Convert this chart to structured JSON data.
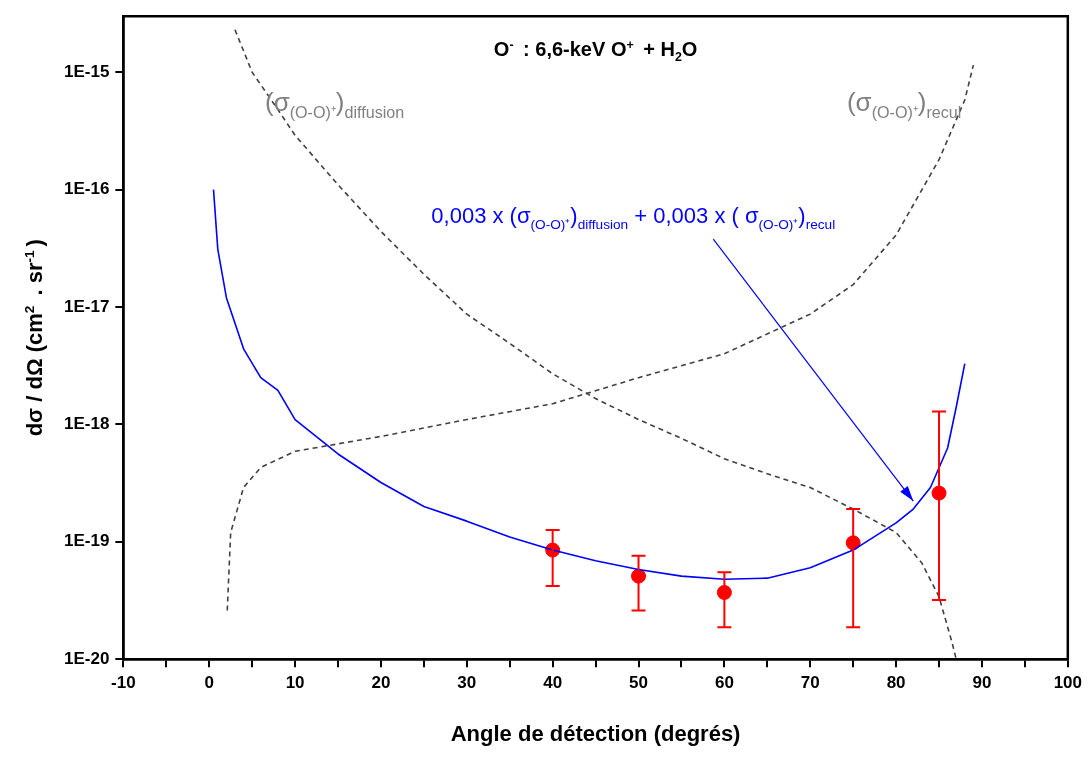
{
  "chart_data": {
    "type": "line",
    "title": "O$^{-}$ : 6,6-keV O$^{+}$ + H$_{2}$O",
    "xlabel": "Angle de détection (degrés)",
    "ylabel": "dσ / dΩ (cm$^{2}$ . sr$^{-1}$)",
    "log": "y",
    "grid": false,
    "legend": false,
    "xlim": [
      -10,
      100
    ],
    "xticks": [
      -10,
      {
        "value": -5,
        "label": null
      },
      0,
      {
        "value": 5,
        "label": null
      },
      10,
      {
        "value": 15,
        "label": null
      },
      20,
      {
        "value": 25,
        "label": null
      },
      30,
      {
        "value": 35,
        "label": null
      },
      40,
      {
        "value": 45,
        "label": null
      },
      50,
      {
        "value": 55,
        "label": null
      },
      60,
      {
        "value": 65,
        "label": null
      },
      70,
      {
        "value": 75,
        "label": null
      },
      80,
      {
        "value": 85,
        "label": null
      },
      90,
      {
        "value": 95,
        "label": null
      },
      100
    ],
    "ylim": [
      1e-20,
      3e-15
    ],
    "yticks": [
      {
        "value": 1e-20,
        "label": "1E-20"
      },
      {
        "value": 1e-19,
        "label": "1E-19"
      },
      {
        "value": 1e-18,
        "label": "1E-18"
      },
      {
        "value": 1e-17,
        "label": "1E-17"
      },
      {
        "value": 1e-16,
        "label": "1E-16"
      },
      {
        "value": 1e-15,
        "label": "1E-15"
      }
    ],
    "series": [
      {
        "name": "(σ$_{(O-O)⁺}$)$_{diffusion}$",
        "type": "line",
        "color": "#404040",
        "line_style": "dashed",
        "marker": "none",
        "x": [
          3,
          5,
          8,
          10,
          15,
          20,
          25,
          30,
          35,
          40,
          45,
          50,
          55,
          60,
          65,
          70,
          75,
          80,
          83,
          85,
          86.5,
          87
        ],
        "values": [
          2.3e-15,
          1e-15,
          4.8e-16,
          2.9e-16,
          1.1e-16,
          4.4e-17,
          1.9e-17,
          8.7e-18,
          4.9e-18,
          2.7e-18,
          1.66e-18,
          1.1e-18,
          7.6e-19,
          5.1e-19,
          3.8e-19,
          2.9e-19,
          1.9e-19,
          1.2e-19,
          6.6e-20,
          3.4e-20,
          1.4e-20,
          1e-20
        ]
      },
      {
        "name": "(σ$_{(O-O)⁺}$)$_{recul}$",
        "type": "line",
        "color": "#404040",
        "line_style": "dashed",
        "marker": "none",
        "x": [
          2.1,
          2.5,
          4,
          6,
          10,
          20,
          30,
          40,
          50,
          60,
          70,
          75,
          80,
          85,
          88,
          89
        ],
        "values": [
          2.6e-20,
          1.2e-19,
          2.9e-19,
          4.3e-19,
          5.9e-19,
          7.9e-19,
          1.1e-18,
          1.5e-18,
          2.5e-18,
          4e-18,
          8.7e-18,
          1.55e-17,
          4.1e-17,
          1.8e-16,
          5.8e-16,
          1.15e-15
        ]
      },
      {
        "name": "0,003 x (σ$_{(O-O)⁺}$)$_{diffusion}$ + 0,003 x ( σ$_{(O-O)⁺}$)$_{recul}$",
        "color": "#0000ff",
        "line_style": "solid",
        "marker": "none",
        "x": [
          0.5,
          1,
          2,
          4,
          6,
          8,
          10,
          15,
          20,
          25,
          30,
          35,
          40,
          45,
          50,
          55,
          60,
          65,
          70,
          75,
          80,
          82,
          84,
          86,
          87,
          88
        ],
        "values": [
          1e-16,
          3.1e-17,
          1.2e-17,
          4.4e-18,
          2.5e-18,
          1.95e-18,
          1.1e-18,
          5.6e-19,
          3.2e-19,
          2e-19,
          1.5e-19,
          1.1e-19,
          8.5e-20,
          6.9e-20,
          5.8e-20,
          5.1e-20,
          4.8e-20,
          4.9e-20,
          6e-20,
          8.5e-20,
          1.45e-19,
          1.9e-19,
          2.9e-19,
          6.3e-19,
          1.4e-18,
          3.3e-18
        ]
      },
      {
        "type": "scatter",
        "color": "#ff0000",
        "marker": "circle",
        "x": [
          40,
          50,
          60,
          75,
          85
        ],
        "values": [
          8.5e-20,
          5.1e-20,
          3.7e-20,
          9.8e-20,
          2.6e-19
        ],
        "errors": [
          [
            4.2e-20,
            1.26e-19
          ],
          [
            2.6e-20,
            7.6e-20
          ],
          [
            1.87e-20,
            5.5e-20
          ],
          [
            1.87e-20,
            1.9e-19
          ],
          [
            3.2e-20,
            1.29e-18
          ]
        ]
      }
    ]
  }
}
